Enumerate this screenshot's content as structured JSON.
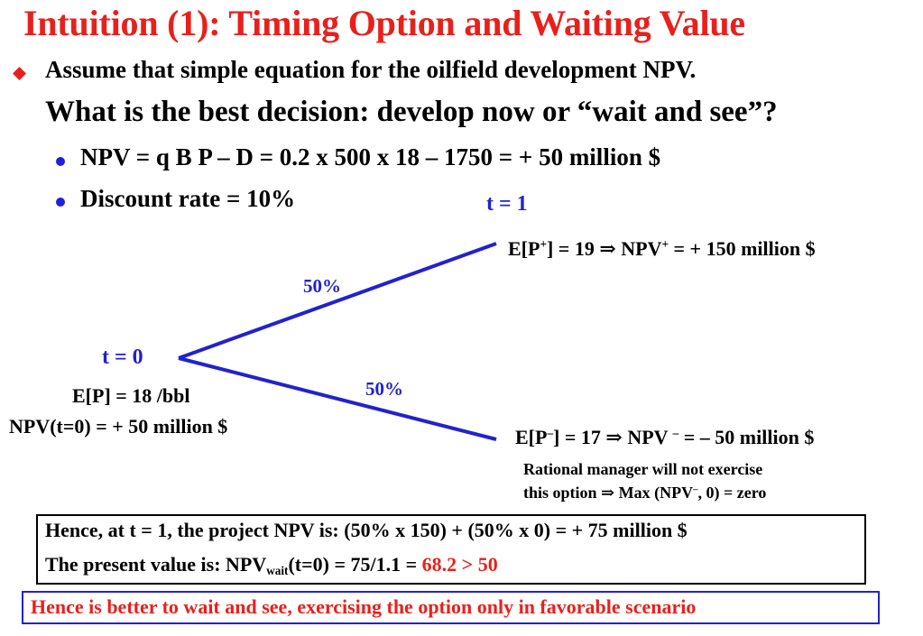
{
  "title": "Intuition (1): Timing Option and Waiting Value",
  "bullet_main": {
    "line1": "Assume that simple equation for the oilfield development NPV.",
    "line2": "What is the best decision: develop now or “wait and see”?"
  },
  "sub_bullets": [
    "NPV = q B P – D = 0.2 x 500 x 18 – 1750 = + 50 million $",
    "Discount rate = 10%"
  ],
  "tree": {
    "t1_label": "t = 1",
    "t0_label": "t = 0",
    "prob_up": "50%",
    "prob_down": "50%",
    "up_outcome": {
      "a": "E[P",
      "a_sup": "+",
      "b": "] = 19  ⇒ NPV",
      "b_sup": "+",
      "c": " = + 150 million $"
    },
    "down_outcome": {
      "a": "E[P",
      "a_sup": "–",
      "b": "] = 17  ⇒ NPV ",
      "b_sup": "–",
      "c": " = – 50 million $"
    },
    "ep_t0": "E[P] = 18 /bbl",
    "npv_t0": "NPV(t=0) = + 50 million $",
    "rational_1": "Rational manager will not exercise",
    "rational_2": {
      "a": "this option ⇒ Max (NPV",
      "sup": "–",
      "b": ", 0) = zero"
    }
  },
  "box1": {
    "line1": "Hence, at t = 1, the project NPV is: (50% x 150) + (50% x 0) = + 75 million $",
    "line2": {
      "a": "The present value is: NPV",
      "sub": "wait",
      "b": "(t=0) = 75/1.1 = ",
      "red": "68.2 > 50"
    }
  },
  "box2": {
    "text": "Hence is better to wait and see, exercising the option only in favorable scenario"
  },
  "colors": {
    "title": "#e8201c",
    "accent": "#2222cc",
    "bullet": "#1f1fe0"
  }
}
